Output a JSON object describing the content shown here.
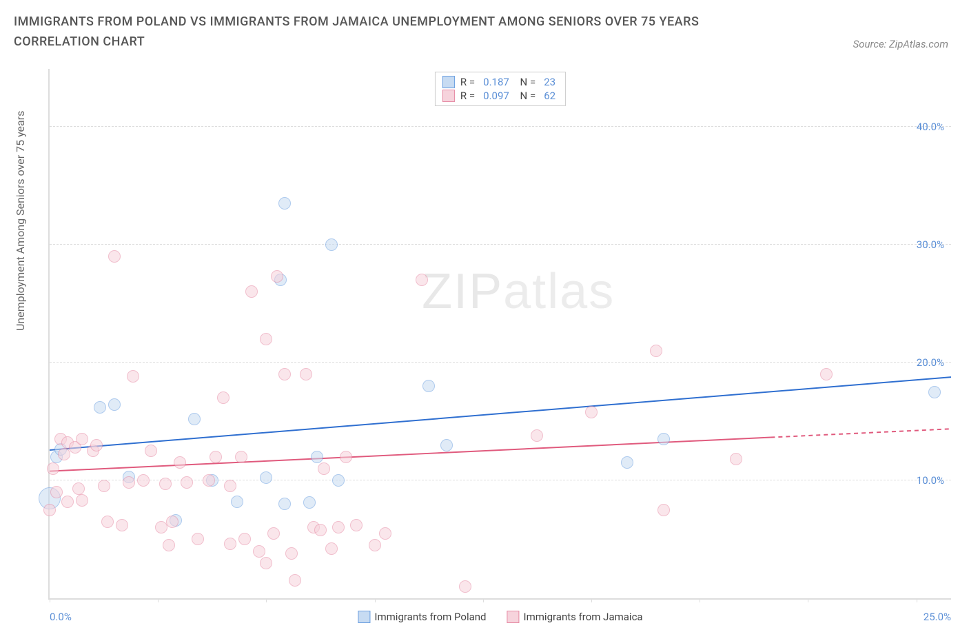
{
  "title": "IMMIGRANTS FROM POLAND VS IMMIGRANTS FROM JAMAICA UNEMPLOYMENT AMONG SENIORS OVER 75 YEARS CORRELATION CHART",
  "source_label": "Source: ZipAtlas.com",
  "y_axis_label": "Unemployment Among Seniors over 75 years",
  "watermark_bold": "ZIP",
  "watermark_thin": "atlas",
  "chart": {
    "type": "scatter",
    "xlim": [
      0,
      25
    ],
    "ylim": [
      0,
      45
    ],
    "x_ticks": [
      0,
      3,
      6,
      9,
      12,
      15,
      18,
      21,
      24
    ],
    "x_tick_labels": {
      "first": "0.0%",
      "last": "25.0%"
    },
    "y_grid": [
      10,
      20,
      30,
      40
    ],
    "y_tick_labels": [
      "10.0%",
      "20.0%",
      "30.0%",
      "40.0%"
    ],
    "background_color": "#ffffff",
    "grid_color": "#dddddd",
    "axis_label_color": "#666666",
    "tick_label_color": "#5b8fd6",
    "point_radius": 9,
    "point_opacity": 0.55,
    "series": [
      {
        "name": "Immigrants from Poland",
        "fill": "#c7dbf2",
        "stroke": "#6b9fe0",
        "trend_color": "#2f6fd0",
        "trend_width": 2,
        "R": "0.187",
        "N": "23",
        "trend": {
          "x1": 0,
          "y1": 12.6,
          "x2": 25,
          "y2": 18.8,
          "solid_to_x": 25
        },
        "points": [
          [
            0.0,
            8.5,
            16
          ],
          [
            0.2,
            12.0
          ],
          [
            0.3,
            12.6
          ],
          [
            1.4,
            16.2
          ],
          [
            1.8,
            16.4
          ],
          [
            2.2,
            10.3
          ],
          [
            3.5,
            6.6
          ],
          [
            4.0,
            15.2
          ],
          [
            4.5,
            10.0
          ],
          [
            5.2,
            8.2
          ],
          [
            6.0,
            10.2
          ],
          [
            6.5,
            8.0
          ],
          [
            6.4,
            27.0
          ],
          [
            6.5,
            33.5
          ],
          [
            7.2,
            8.1
          ],
          [
            7.4,
            12.0
          ],
          [
            7.8,
            30.0
          ],
          [
            8.0,
            10.0
          ],
          [
            10.5,
            18.0
          ],
          [
            11.0,
            13.0
          ],
          [
            16.0,
            11.5
          ],
          [
            17.0,
            13.5
          ],
          [
            24.5,
            17.5
          ]
        ]
      },
      {
        "name": "Immigrants from Jamaica",
        "fill": "#f6d3dc",
        "stroke": "#e68aa4",
        "trend_color": "#e05a7d",
        "trend_width": 2,
        "R": "0.097",
        "N": "62",
        "trend": {
          "x1": 0,
          "y1": 10.8,
          "x2": 25,
          "y2": 14.4,
          "solid_to_x": 20
        },
        "points": [
          [
            0.0,
            7.5
          ],
          [
            0.1,
            11.0
          ],
          [
            0.2,
            9.0
          ],
          [
            0.3,
            13.5
          ],
          [
            0.4,
            12.2
          ],
          [
            0.5,
            8.2
          ],
          [
            0.5,
            13.2
          ],
          [
            0.7,
            12.8
          ],
          [
            0.8,
            9.3
          ],
          [
            0.9,
            13.5
          ],
          [
            0.9,
            8.3
          ],
          [
            1.2,
            12.5
          ],
          [
            1.3,
            13.0
          ],
          [
            1.5,
            9.5
          ],
          [
            1.6,
            6.5
          ],
          [
            1.8,
            29.0
          ],
          [
            2.0,
            6.2
          ],
          [
            2.2,
            9.8
          ],
          [
            2.3,
            18.8
          ],
          [
            2.6,
            10.0
          ],
          [
            2.8,
            12.5
          ],
          [
            3.1,
            6.0
          ],
          [
            3.2,
            9.7
          ],
          [
            3.3,
            4.5
          ],
          [
            3.4,
            6.5
          ],
          [
            3.6,
            11.5
          ],
          [
            3.8,
            9.8
          ],
          [
            4.1,
            5.0
          ],
          [
            4.4,
            10.0
          ],
          [
            4.6,
            12.0
          ],
          [
            4.8,
            17.0
          ],
          [
            5.0,
            4.6
          ],
          [
            5.0,
            9.5
          ],
          [
            5.3,
            12.0
          ],
          [
            5.4,
            5.0
          ],
          [
            5.6,
            26.0
          ],
          [
            5.8,
            4.0
          ],
          [
            6.0,
            22.0
          ],
          [
            6.0,
            3.0
          ],
          [
            6.2,
            5.5
          ],
          [
            6.3,
            27.3
          ],
          [
            6.5,
            19.0
          ],
          [
            6.7,
            3.8
          ],
          [
            6.8,
            1.5
          ],
          [
            7.1,
            19.0
          ],
          [
            7.3,
            6.0
          ],
          [
            7.5,
            5.8
          ],
          [
            7.6,
            11.0
          ],
          [
            7.8,
            4.2
          ],
          [
            8.0,
            6.0
          ],
          [
            8.2,
            12.0
          ],
          [
            8.5,
            6.2
          ],
          [
            9.0,
            4.5
          ],
          [
            9.3,
            5.5
          ],
          [
            10.3,
            27.0
          ],
          [
            11.5,
            1.0
          ],
          [
            13.5,
            13.8
          ],
          [
            15.0,
            15.8
          ],
          [
            16.8,
            21.0
          ],
          [
            17.0,
            7.5
          ],
          [
            19.0,
            11.8
          ],
          [
            21.5,
            19.0
          ]
        ]
      }
    ]
  },
  "stats_legend": {
    "R_label": "R =",
    "N_label": "N ="
  }
}
